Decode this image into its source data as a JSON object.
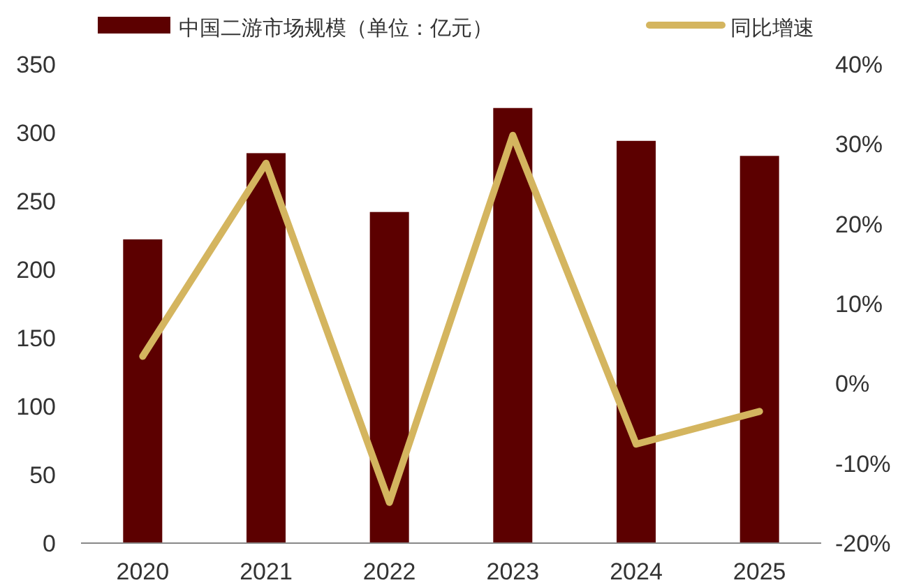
{
  "chart_data": {
    "type": "bar",
    "categories": [
      "2020",
      "2021",
      "2022",
      "2023",
      "2024",
      "2025"
    ],
    "series": [
      {
        "name": "中国二游市场规模（单位：亿元）",
        "color": "#5c0000",
        "values": [
          222,
          285,
          242,
          318,
          294,
          283
        ]
      },
      {
        "name": "同比增速",
        "type": "line",
        "axis": "y2",
        "color": "#d4b55f",
        "values": [
          3.4,
          27.6,
          -14.9,
          31.1,
          -7.6,
          -3.5
        ]
      }
    ],
    "ylim": [
      0,
      350
    ],
    "yticks": [
      0,
      50,
      100,
      150,
      200,
      250,
      300,
      350
    ],
    "y2lim": [
      -20,
      40
    ],
    "y2ticks": [
      {
        "value": -20,
        "label": "-20%"
      },
      {
        "value": -10,
        "label": "-10%"
      },
      {
        "value": 0,
        "label": "0%"
      },
      {
        "value": 10,
        "label": "10%"
      },
      {
        "value": 20,
        "label": "20%"
      },
      {
        "value": 30,
        "label": "30%"
      },
      {
        "value": 40,
        "label": "40%"
      }
    ],
    "legend": "top"
  }
}
